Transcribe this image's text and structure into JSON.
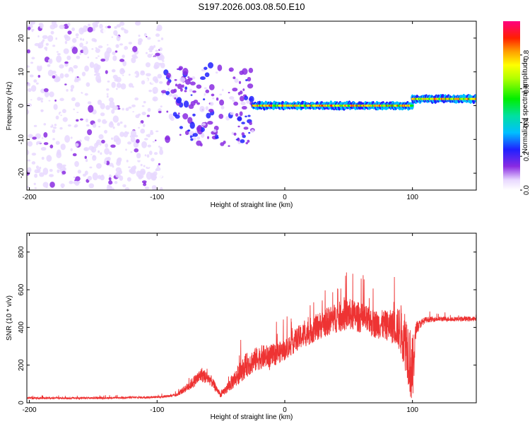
{
  "chart_data": [
    {
      "type": "heatmap",
      "title": "S197.2026.003.08.50.E10",
      "xlabel": "Height of straight line (km)",
      "ylabel": "Frequency (Hz)",
      "xlim": [
        -202,
        150
      ],
      "ylim": [
        -25,
        25
      ],
      "xticks": [
        -200,
        -100,
        0,
        100
      ],
      "yticks": [
        -20,
        -10,
        0,
        10,
        20
      ],
      "colorbar": {
        "label": "Normalized spectral amplitude",
        "range": [
          0.0,
          1.0
        ],
        "ticks": [
          0.0,
          0.2,
          0.4,
          0.6,
          0.8
        ]
      },
      "description_regions": [
        {
          "x_range": [
            -202,
            -95
          ],
          "freq_range": [
            -25,
            25
          ],
          "amplitude": [
            0.05,
            0.15
          ],
          "pattern": "scattered noise blobs"
        },
        {
          "x_range": [
            -95,
            -25
          ],
          "freq_range": [
            -12,
            12
          ],
          "amplitude": [
            0.1,
            0.3
          ],
          "pattern": "converging energy"
        },
        {
          "x_range": [
            -25,
            100
          ],
          "freq_center": 0,
          "amplitude": [
            0.6,
            0.95
          ],
          "pattern": "narrow band near 0 Hz"
        },
        {
          "x_range": [
            100,
            150
          ],
          "freq_center": 2,
          "amplitude": [
            0.6,
            0.95
          ],
          "pattern": "narrow band near 2 Hz"
        }
      ]
    },
    {
      "type": "line",
      "xlabel": "Height of straight line (km)",
      "ylabel": "SNR (10 * v/v)",
      "xlim": [
        -202,
        150
      ],
      "ylim": [
        0,
        900
      ],
      "xticks": [
        -200,
        -100,
        0,
        100
      ],
      "yticks": [
        0,
        200,
        400,
        600,
        800
      ],
      "series_color": "#ee3333",
      "envelope": {
        "x": [
          -202,
          -150,
          -100,
          -85,
          -75,
          -65,
          -58,
          -50,
          -40,
          -30,
          -20,
          -10,
          0,
          10,
          20,
          30,
          40,
          50,
          60,
          70,
          80,
          88,
          92,
          96,
          100,
          103,
          110,
          120,
          130,
          140,
          150
        ],
        "y": [
          25,
          25,
          30,
          40,
          90,
          150,
          120,
          40,
          120,
          200,
          240,
          250,
          280,
          340,
          380,
          420,
          450,
          470,
          450,
          420,
          410,
          400,
          380,
          300,
          150,
          400,
          440,
          445,
          445,
          445,
          445
        ],
        "spread": [
          10,
          10,
          10,
          15,
          50,
          80,
          60,
          25,
          90,
          130,
          130,
          120,
          110,
          130,
          140,
          150,
          160,
          170,
          160,
          150,
          160,
          200,
          300,
          350,
          400,
          60,
          30,
          25,
          25,
          25,
          25
        ]
      }
    }
  ]
}
